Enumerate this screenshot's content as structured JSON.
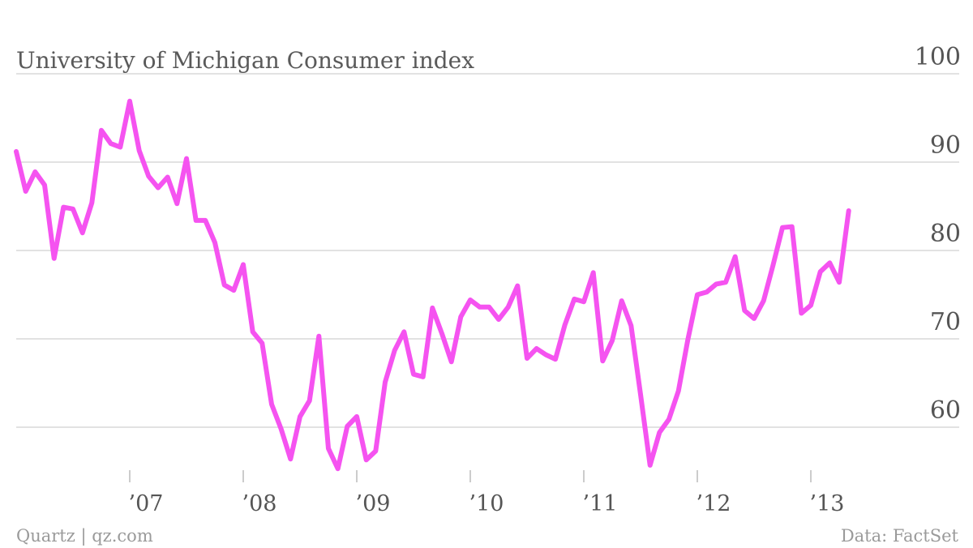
{
  "footer": {
    "source_left": "Quartz | qz.com",
    "source_right": "Data: FactSet"
  },
  "chart_data": {
    "type": "line",
    "title": "University of Michigan Consumer index",
    "xlabel": "",
    "ylabel": "",
    "ylim": [
      54,
      100
    ],
    "yticks": [
      60,
      70,
      80,
      90,
      100
    ],
    "y_tick_labels": [
      "60",
      "70",
      "80",
      "90",
      "100"
    ],
    "x_tick_labels": [
      "’07",
      "’08",
      "’09",
      "’10",
      "’11",
      "’12",
      "’13"
    ],
    "x_tick_dates": [
      "2007-01",
      "2008-01",
      "2009-01",
      "2010-01",
      "2011-01",
      "2012-01",
      "2013-01"
    ],
    "grid": true,
    "y_axis_position": "right",
    "line_color": "#f553f0",
    "series": [
      {
        "x": [
          "2006-01",
          "2006-02",
          "2006-03",
          "2006-04",
          "2006-05",
          "2006-06",
          "2006-07",
          "2006-08",
          "2006-09",
          "2006-10",
          "2006-11",
          "2006-12",
          "2007-01",
          "2007-02",
          "2007-03",
          "2007-04",
          "2007-05",
          "2007-06",
          "2007-07",
          "2007-08",
          "2007-09",
          "2007-10",
          "2007-11",
          "2007-12",
          "2008-01",
          "2008-02",
          "2008-03",
          "2008-04",
          "2008-05",
          "2008-06",
          "2008-07",
          "2008-08",
          "2008-09",
          "2008-10",
          "2008-11",
          "2008-12",
          "2009-01",
          "2009-02",
          "2009-03",
          "2009-04",
          "2009-05",
          "2009-06",
          "2009-07",
          "2009-08",
          "2009-09",
          "2009-10",
          "2009-11",
          "2009-12",
          "2010-01",
          "2010-02",
          "2010-03",
          "2010-04",
          "2010-05",
          "2010-06",
          "2010-07",
          "2010-08",
          "2010-09",
          "2010-10",
          "2010-11",
          "2010-12",
          "2011-01",
          "2011-02",
          "2011-03",
          "2011-04",
          "2011-05",
          "2011-06",
          "2011-07",
          "2011-08",
          "2011-09",
          "2011-10",
          "2011-11",
          "2011-12",
          "2012-01",
          "2012-02",
          "2012-03",
          "2012-04",
          "2012-05",
          "2012-06",
          "2012-07",
          "2012-08",
          "2012-09",
          "2012-10",
          "2012-11",
          "2012-12",
          "2013-01",
          "2013-02",
          "2013-03",
          "2013-04",
          "2013-05"
        ],
        "values": [
          91.2,
          86.7,
          88.9,
          87.4,
          79.1,
          84.9,
          84.7,
          82.0,
          85.4,
          93.6,
          92.1,
          91.7,
          96.9,
          91.3,
          88.4,
          87.1,
          88.3,
          85.3,
          90.4,
          83.4,
          83.4,
          80.9,
          76.1,
          75.5,
          78.4,
          70.8,
          69.5,
          62.6,
          59.8,
          56.4,
          61.2,
          63.0,
          70.3,
          57.6,
          55.3,
          60.1,
          61.2,
          56.3,
          57.3,
          65.1,
          68.7,
          70.8,
          66.0,
          65.7,
          73.5,
          70.6,
          67.4,
          72.5,
          74.4,
          73.6,
          73.6,
          72.2,
          73.6,
          76.0,
          67.8,
          68.9,
          68.2,
          67.7,
          71.6,
          74.5,
          74.2,
          77.5,
          67.5,
          69.8,
          74.3,
          71.5,
          63.7,
          55.7,
          59.4,
          60.9,
          64.1,
          69.9,
          75.0,
          75.3,
          76.2,
          76.4,
          79.3,
          73.2,
          72.3,
          74.3,
          78.3,
          82.6,
          82.7,
          72.9,
          73.8,
          77.6,
          78.6,
          76.4,
          84.5
        ]
      }
    ]
  }
}
